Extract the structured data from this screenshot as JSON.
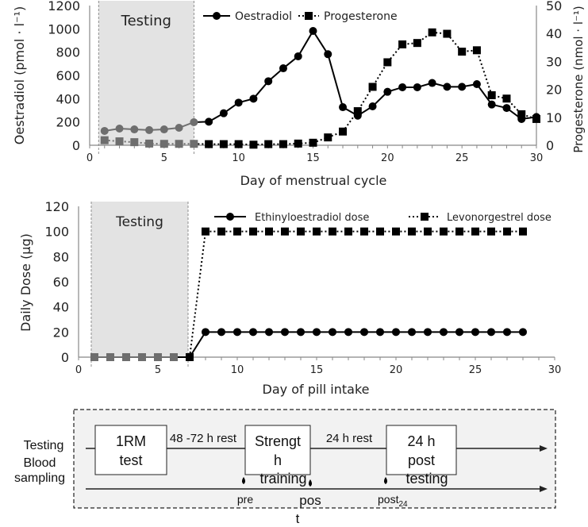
{
  "chart_data": [
    {
      "type": "line",
      "title": "",
      "shaded_region": {
        "label": "Testing",
        "x_range": [
          0.6,
          7
        ]
      },
      "xlabel": "Day of menstrual cycle",
      "ylabel": "Oestradiol   (pmol · l⁻¹)",
      "y2label": "Progesterone (nmol · l⁻¹)",
      "xlim": [
        0,
        30
      ],
      "ylim": [
        0,
        1200
      ],
      "y2lim": [
        0,
        50
      ],
      "xticks": [
        0,
        5,
        10,
        15,
        20,
        25,
        30
      ],
      "yticks": [
        0,
        200,
        400,
        600,
        800,
        1000,
        1200
      ],
      "y2ticks": [
        0,
        10,
        20,
        30,
        40,
        50
      ],
      "legend_position": "top",
      "x": [
        1,
        2,
        3,
        4,
        5,
        6,
        7,
        8,
        9,
        10,
        11,
        12,
        13,
        14,
        15,
        16,
        17,
        18,
        19,
        20,
        21,
        22,
        23,
        24,
        25,
        26,
        27,
        28,
        29,
        30
      ],
      "series": [
        {
          "name": "Oestradiol",
          "axis": "left",
          "marker": "circle",
          "line": "solid",
          "values": [
            123,
            143,
            136,
            130,
            136,
            150,
            198,
            202,
            275,
            366,
            400,
            550,
            661,
            764,
            982,
            782,
            327,
            254,
            334,
            459,
            498,
            498,
            535,
            502,
            502,
            525,
            350,
            320,
            225,
            243
          ]
        },
        {
          "name": "Progesterone",
          "axis": "right",
          "marker": "square",
          "line": "dotted",
          "values": [
            1.8,
            1.4,
            1.1,
            0.6,
            0.5,
            0.5,
            0.5,
            0.4,
            0.4,
            0.4,
            0.2,
            0.4,
            0.4,
            0.6,
            0.9,
            2.8,
            4.9,
            12.2,
            20.9,
            29.7,
            36.1,
            36.6,
            40.4,
            39.9,
            33.5,
            34.0,
            17.9,
            16.7,
            11.1,
            9.4
          ]
        }
      ]
    },
    {
      "type": "line",
      "title": "",
      "shaded_region": {
        "label": "Testing",
        "x_range": [
          0.8,
          6.9
        ]
      },
      "xlabel": "Day of pill intake",
      "ylabel": "Daily Dose (µg)",
      "xlim": [
        0,
        30
      ],
      "ylim": [
        0,
        120
      ],
      "xticks": [
        0,
        5,
        10,
        15,
        20,
        25,
        30
      ],
      "yticks": [
        0,
        20,
        40,
        60,
        80,
        100,
        120
      ],
      "legend_position": "top",
      "x": [
        1,
        2,
        3,
        4,
        5,
        6,
        7,
        8,
        9,
        10,
        11,
        12,
        13,
        14,
        15,
        16,
        17,
        18,
        19,
        20,
        21,
        22,
        23,
        24,
        25,
        26,
        27,
        28
      ],
      "series": [
        {
          "name": "Ethinyloestradiol dose",
          "marker": "circle",
          "line": "solid",
          "values": [
            0,
            0,
            0,
            0,
            0,
            0,
            0,
            20,
            20,
            20,
            20,
            20,
            20,
            20,
            20,
            20,
            20,
            20,
            20,
            20,
            20,
            20,
            20,
            20,
            20,
            20,
            20,
            20
          ]
        },
        {
          "name": "Levonorgestrel dose",
          "marker": "square",
          "line": "dotted",
          "values": [
            0,
            0,
            0,
            0,
            0,
            0,
            0,
            100,
            100,
            100,
            100,
            100,
            100,
            100,
            100,
            100,
            100,
            100,
            100,
            100,
            100,
            100,
            100,
            100,
            100,
            100,
            100,
            100
          ]
        }
      ]
    }
  ],
  "diagram": {
    "row_testing": "Testing",
    "row_blood_1": "Blood",
    "row_blood_2": "sampling",
    "box1": [
      "1RM",
      "test"
    ],
    "rest1": "48 -72 h rest",
    "box2": [
      "Strengt",
      "h",
      "training"
    ],
    "rest2": "24 h rest",
    "box3": [
      "24 h",
      "post",
      "testing"
    ],
    "sample_pre": "pre",
    "sample_post": [
      "pos",
      "t"
    ],
    "sample_post24": "post",
    "sample_post24_sub": "24"
  }
}
